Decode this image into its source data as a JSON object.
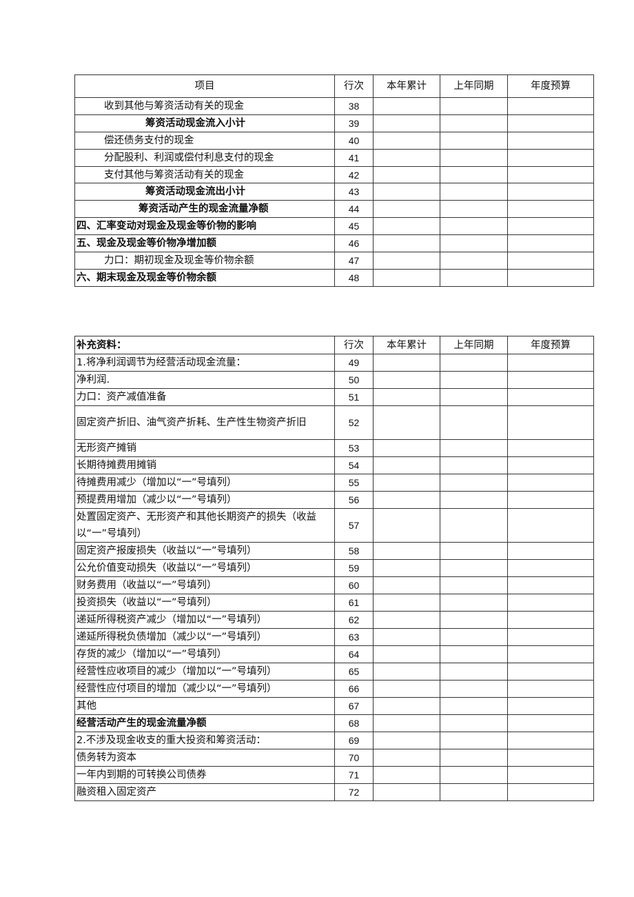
{
  "table1": {
    "headers": [
      "项目",
      "行次",
      "本年累计",
      "上年同期",
      "年度预算"
    ],
    "rows": [
      {
        "item": "收到其他与筹资活动有关的现金",
        "line": "38",
        "style": "i1"
      },
      {
        "item": "筹资活动现金流入小计",
        "line": "39",
        "style": "i2 b"
      },
      {
        "item": "偿还债务支付的现金",
        "line": "40",
        "style": "i1"
      },
      {
        "item": "分配股利、利润或偿付利息支付的现金",
        "line": "41",
        "style": "i1"
      },
      {
        "item": "支付其他与筹资活动有关的现金",
        "line": "42",
        "style": "i1"
      },
      {
        "item": "筹资活动现金流出小计",
        "line": "43",
        "style": "i2 b"
      },
      {
        "item": "筹资活动产生的现金流量净额",
        "line": "44",
        "style": "i3 b"
      },
      {
        "item": "四、汇率变动对现金及现金等价物的影响",
        "line": "45",
        "style": "b"
      },
      {
        "item": "五、现金及现金等价物净增加额",
        "line": "46",
        "style": "b"
      },
      {
        "item": "力口：期初现金及现金等价物余额",
        "line": "47",
        "style": "i1"
      },
      {
        "item": "六、期末现金及现金等价物余额",
        "line": "48",
        "style": "b"
      }
    ]
  },
  "table2": {
    "headers": [
      "补充资料：",
      "行次",
      "本年累计",
      "上年同期",
      "年度预算"
    ],
    "rows": [
      {
        "item": "1.将净利润调节为经营活动现金流量：",
        "line": "49",
        "style": ""
      },
      {
        "item": "净利润.",
        "line": "50",
        "style": ""
      },
      {
        "item": "力口：资产减值准备",
        "line": "51",
        "style": ""
      },
      {
        "item": "固定资产折旧、油气资产折耗、生产性生物资产折旧",
        "line": "52",
        "style": "wrap"
      },
      {
        "item": "无形资产摊销",
        "line": "53",
        "style": ""
      },
      {
        "item": "长期待摊费用摊销",
        "line": "54",
        "style": ""
      },
      {
        "item": "待摊费用减少（增加以“一”号填列）",
        "line": "55",
        "style": ""
      },
      {
        "item": "预提费用增加（减少以“一”号填列）",
        "line": "56",
        "style": ""
      },
      {
        "item": "处置固定资产、无形资产和其他长期资产的损失（收益以“一”号填列）",
        "line": "57",
        "style": "wrap"
      },
      {
        "item": "固定资产报废损失（收益以“一”号填列）",
        "line": "58",
        "style": ""
      },
      {
        "item": "公允价值变动损失（收益以“一”号填列）",
        "line": "59",
        "style": ""
      },
      {
        "item": "财务费用（收益以“一”号填列）",
        "line": "60",
        "style": ""
      },
      {
        "item": "投资损失（收益以“一”号填列）",
        "line": "61",
        "style": ""
      },
      {
        "item": "递延所得税资产减少（增加以“一”号填列）",
        "line": "62",
        "style": ""
      },
      {
        "item": "递延所得税负债增加（减少以“一”号填列）",
        "line": "63",
        "style": ""
      },
      {
        "item": "存货的减少（增加以“一”号填列）",
        "line": "64",
        "style": ""
      },
      {
        "item": "经营性应收项目的减少（增加以“一”号填列）",
        "line": "65",
        "style": ""
      },
      {
        "item": "经营性应付项目的增加（减少以“一”号填列）",
        "line": "66",
        "style": ""
      },
      {
        "item": "其他",
        "line": "67",
        "style": ""
      },
      {
        "item": "经营活动产生的现金流量净额",
        "line": "68",
        "style": "b"
      },
      {
        "item": "2.不涉及现金收支的重大投资和筹资活动：",
        "line": "69",
        "style": ""
      },
      {
        "item": "债务转为资本",
        "line": "70",
        "style": ""
      },
      {
        "item": "一年内到期的可转换公司债券",
        "line": "71",
        "style": ""
      },
      {
        "item": "融资租入固定资产",
        "line": "72",
        "style": ""
      }
    ]
  }
}
